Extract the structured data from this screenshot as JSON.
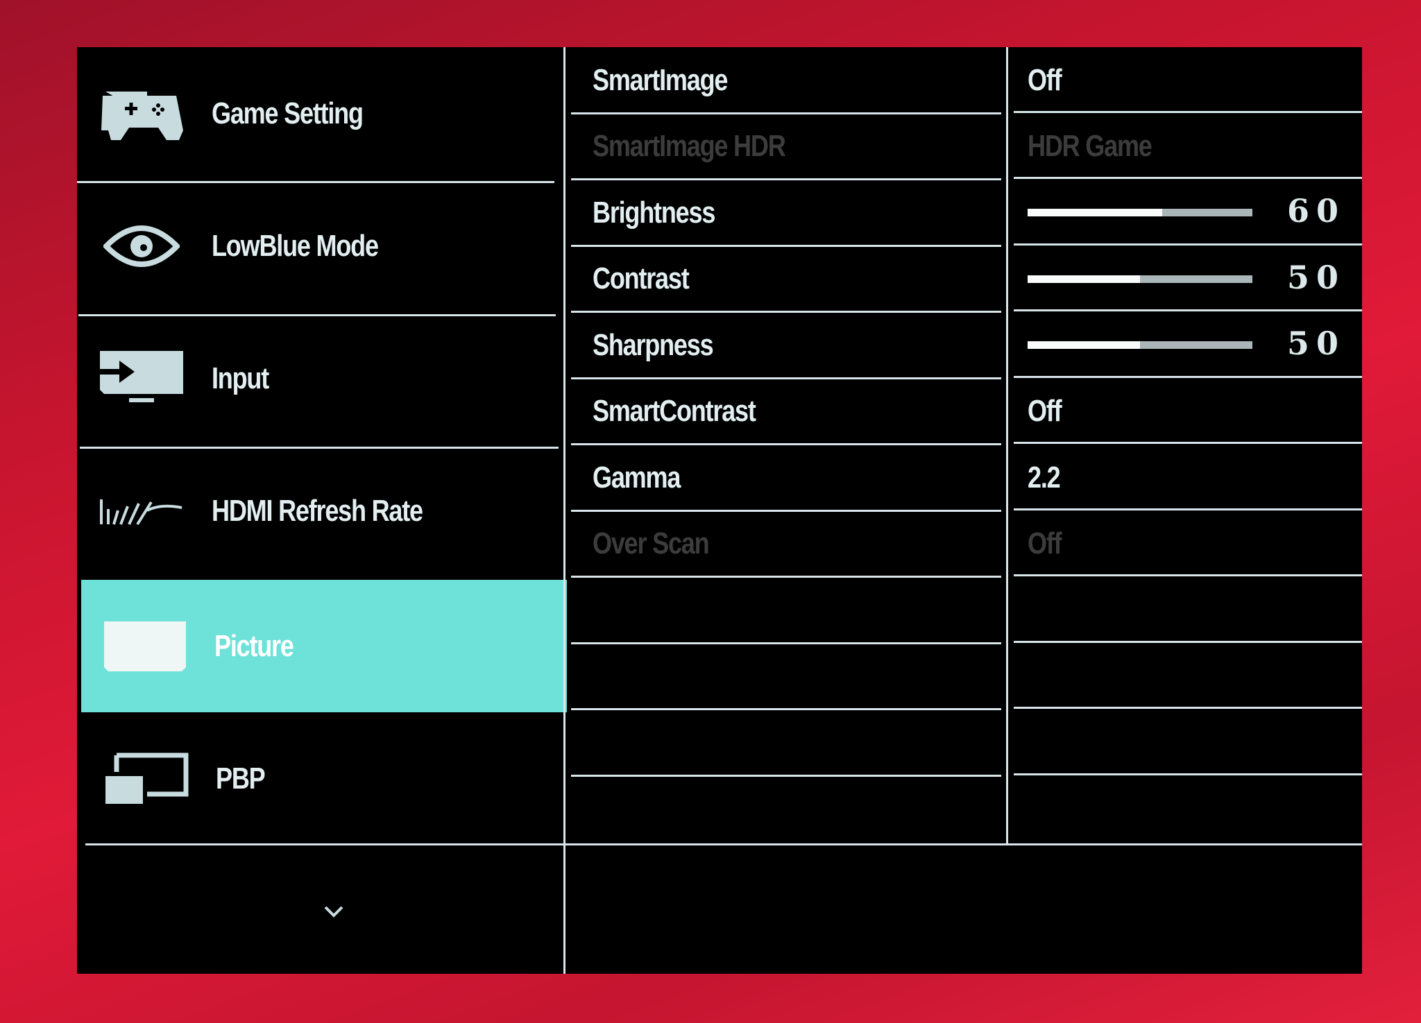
{
  "sidebar": {
    "items": [
      {
        "label": "Game Setting",
        "icon": "gamepad-icon"
      },
      {
        "label": "LowBlue Mode",
        "icon": "eye-icon"
      },
      {
        "label": "Input",
        "icon": "input-icon"
      },
      {
        "label": "HDMI Refresh Rate",
        "icon": "refresh-rate-icon"
      },
      {
        "label": "Picture",
        "icon": "picture-icon",
        "active": true
      },
      {
        "label": "PBP",
        "icon": "pbp-icon"
      }
    ],
    "more_icon": "chevron-down-icon"
  },
  "settings": [
    {
      "label": "SmartImage",
      "value": "Off",
      "enabled": true
    },
    {
      "label": "SmartImage HDR",
      "value": "HDR Game",
      "enabled": false
    },
    {
      "label": "Brightness",
      "value": "60",
      "slider": 60,
      "enabled": true
    },
    {
      "label": "Contrast",
      "value": "50",
      "slider": 50,
      "enabled": true
    },
    {
      "label": "Sharpness",
      "value": "50",
      "slider": 50,
      "enabled": true
    },
    {
      "label": "SmartContrast",
      "value": "Off",
      "enabled": true
    },
    {
      "label": "Gamma",
      "value": "2.2",
      "enabled": true
    },
    {
      "label": "Over Scan",
      "value": "Off",
      "enabled": false
    }
  ],
  "colors": {
    "highlight": "#6ee1d9",
    "text": "#e2eef0",
    "disabled": "#3c3c3c",
    "background": "#000000"
  }
}
